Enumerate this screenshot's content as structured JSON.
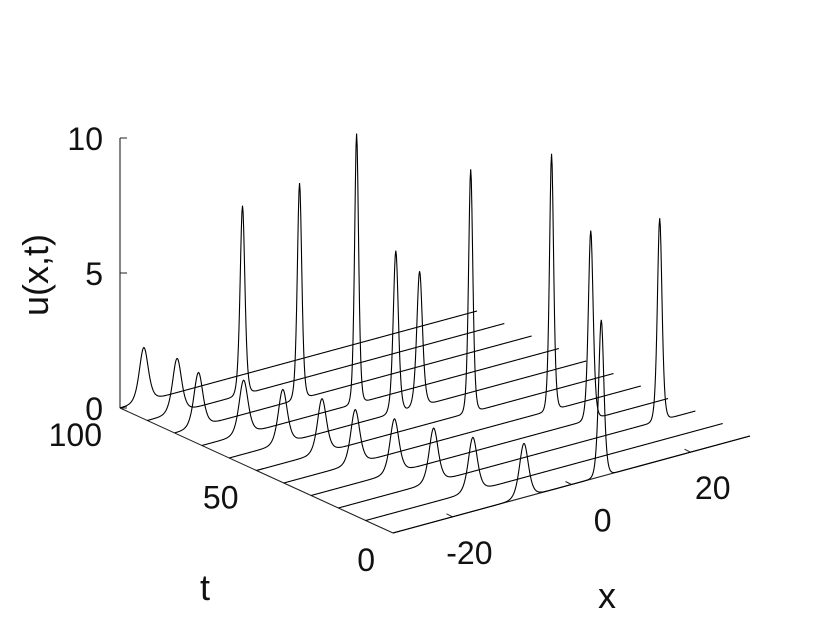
{
  "chart_data": {
    "type": "line",
    "view": "3d-waterfall",
    "title": "",
    "xlabel": "x",
    "ylabel": "t",
    "zlabel": "u(x,t)",
    "xlim": [
      -30,
      30
    ],
    "ylim": [
      0,
      100
    ],
    "zlim": [
      0,
      10
    ],
    "x_ticks": [
      -20,
      0,
      20
    ],
    "y_ticks": [
      0,
      50,
      100
    ],
    "z_ticks": [
      0,
      5,
      10
    ],
    "x_tick_labels": [
      "-20",
      "0",
      "20"
    ],
    "y_tick_labels": [
      "0",
      "50",
      "100"
    ],
    "z_tick_labels": [
      "0",
      "5",
      "10"
    ],
    "grid": false,
    "line_color": "#000000",
    "series": [
      {
        "t": 100,
        "peaks": [
          {
            "x": -26,
            "u": 2.0
          }
        ]
      },
      {
        "t": 90,
        "peaks": [
          {
            "x": -25,
            "u": 2.0
          },
          {
            "x": -14,
            "u": 7.0
          }
        ]
      },
      {
        "t": 80,
        "peaks": [
          {
            "x": -26,
            "u": 2.0
          },
          {
            "x": -9,
            "u": 8.0
          }
        ]
      },
      {
        "t": 70,
        "peaks": [
          {
            "x": -23,
            "u": 2.0
          },
          {
            "x": -4,
            "u": 10.0
          }
        ]
      },
      {
        "t": 60,
        "peaks": [
          {
            "x": -21,
            "u": 2.0
          },
          {
            "x": -2,
            "u": 6.0
          },
          {
            "x": 2,
            "u": 5.0
          }
        ]
      },
      {
        "t": 50,
        "peaks": [
          {
            "x": -19,
            "u": 2.0
          },
          {
            "x": 6,
            "u": 9.0
          }
        ]
      },
      {
        "t": 40,
        "peaks": [
          {
            "x": -18,
            "u": 2.0
          },
          {
            "x": 15,
            "u": 9.5
          }
        ]
      },
      {
        "t": 30,
        "peaks": [
          {
            "x": -16,
            "u": 2.0
          },
          {
            "x": 17,
            "u": 7.0
          }
        ]
      },
      {
        "t": 20,
        "peaks": [
          {
            "x": -14,
            "u": 2.0
          },
          {
            "x": 24,
            "u": 7.5
          }
        ]
      },
      {
        "t": 10,
        "peaks": [
          {
            "x": -12,
            "u": 2.0
          }
        ]
      },
      {
        "t": 0,
        "peaks": [
          {
            "x": -8,
            "u": 2.0
          },
          {
            "x": 5,
            "u": 5.8
          }
        ]
      }
    ]
  }
}
